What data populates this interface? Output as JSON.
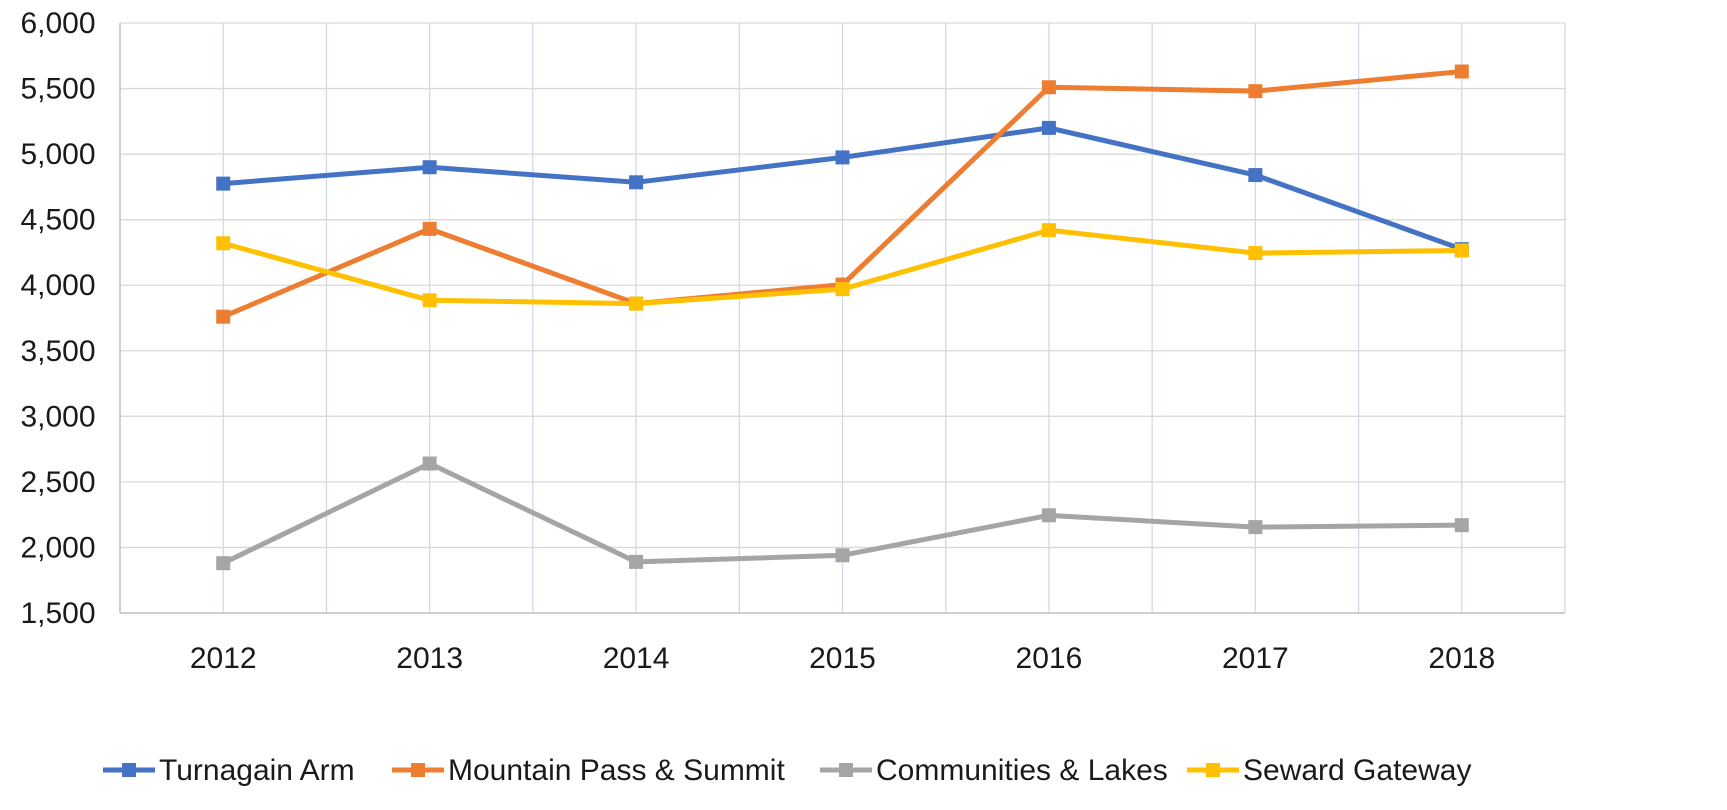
{
  "chart_data": {
    "type": "line",
    "title": "",
    "xlabel": "",
    "ylabel": "",
    "x": [
      "2012",
      "2013",
      "2014",
      "2015",
      "2016",
      "2017",
      "2018"
    ],
    "ylim": [
      1500,
      6000
    ],
    "yticks": [
      1500,
      2000,
      2500,
      3000,
      3500,
      4000,
      4500,
      5000,
      5500,
      6000
    ],
    "ytick_labels": [
      "1,500",
      "2,000",
      "2,500",
      "3,000",
      "3,500",
      "4,000",
      "4,500",
      "5,000",
      "5,500",
      "6,000"
    ],
    "grid": true,
    "legend_position": "bottom",
    "series": [
      {
        "name": "Turnagain Arm",
        "color": "#4472C4",
        "values": [
          4775,
          4900,
          4785,
          4975,
          5200,
          4840,
          4275
        ]
      },
      {
        "name": "Mountain Pass & Summit",
        "color": "#ED7D31",
        "values": [
          3760,
          4430,
          3860,
          4005,
          5510,
          5480,
          5630
        ]
      },
      {
        "name": "Communities & Lakes",
        "color": "#A5A5A5",
        "values": [
          1880,
          2640,
          1890,
          1940,
          2245,
          2155,
          2170
        ]
      },
      {
        "name": "Seward Gateway",
        "color": "#FFC000",
        "values": [
          4320,
          3885,
          3860,
          3970,
          4420,
          4245,
          4265
        ]
      }
    ]
  }
}
